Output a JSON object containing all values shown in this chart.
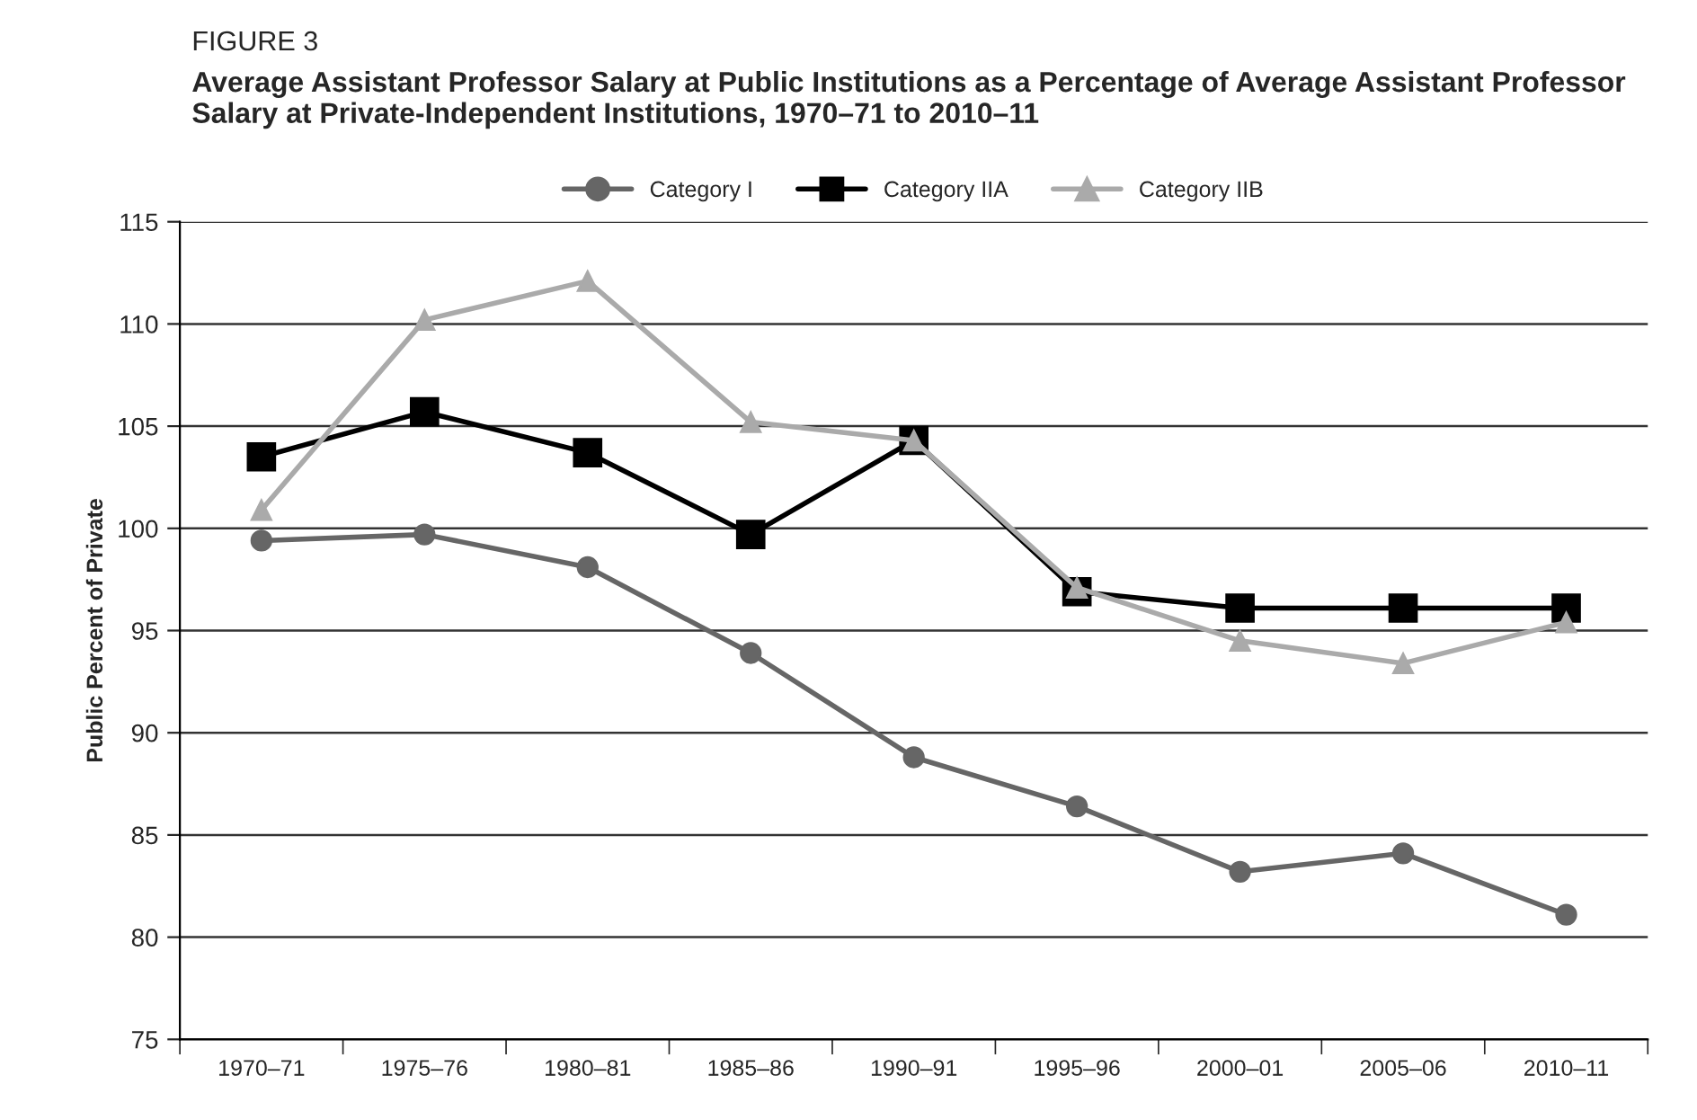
{
  "chart_data": {
    "type": "line",
    "title": "FIGURE 3",
    "subtitle": "Average Assistant Professor Salary at Public Institutions as a Percentage of Average Assistant Professor Salary at Private-Independent Institutions, 1970–71 to 2010–11",
    "ylabel": "Public Percent of Private",
    "categories": [
      "1970–71",
      "1975–76",
      "1980–81",
      "1985–86",
      "1990–91",
      "1995–96",
      "2000–01",
      "2005–06",
      "2010–11"
    ],
    "series": [
      {
        "name": "Category I",
        "color": "#666666",
        "marker": "circle",
        "values": [
          99.4,
          99.7,
          98.1,
          93.9,
          88.8,
          86.4,
          83.2,
          84.1,
          81.1
        ]
      },
      {
        "name": "Category IIA",
        "color": "#000000",
        "marker": "square",
        "values": [
          103.5,
          105.7,
          103.7,
          99.7,
          104.3,
          96.9,
          96.1,
          96.1,
          96.1
        ]
      },
      {
        "name": "Category IIB",
        "color": "#aaaaaa",
        "marker": "triangle",
        "values": [
          100.9,
          110.2,
          112.1,
          105.2,
          104.3,
          97.1,
          94.5,
          93.4,
          95.4
        ]
      }
    ],
    "ylim": [
      75,
      115
    ],
    "yticks": [
      75,
      80,
      85,
      90,
      95,
      100,
      105,
      110,
      115
    ],
    "grid": "y",
    "legend": "top",
    "line_style": "solid"
  }
}
